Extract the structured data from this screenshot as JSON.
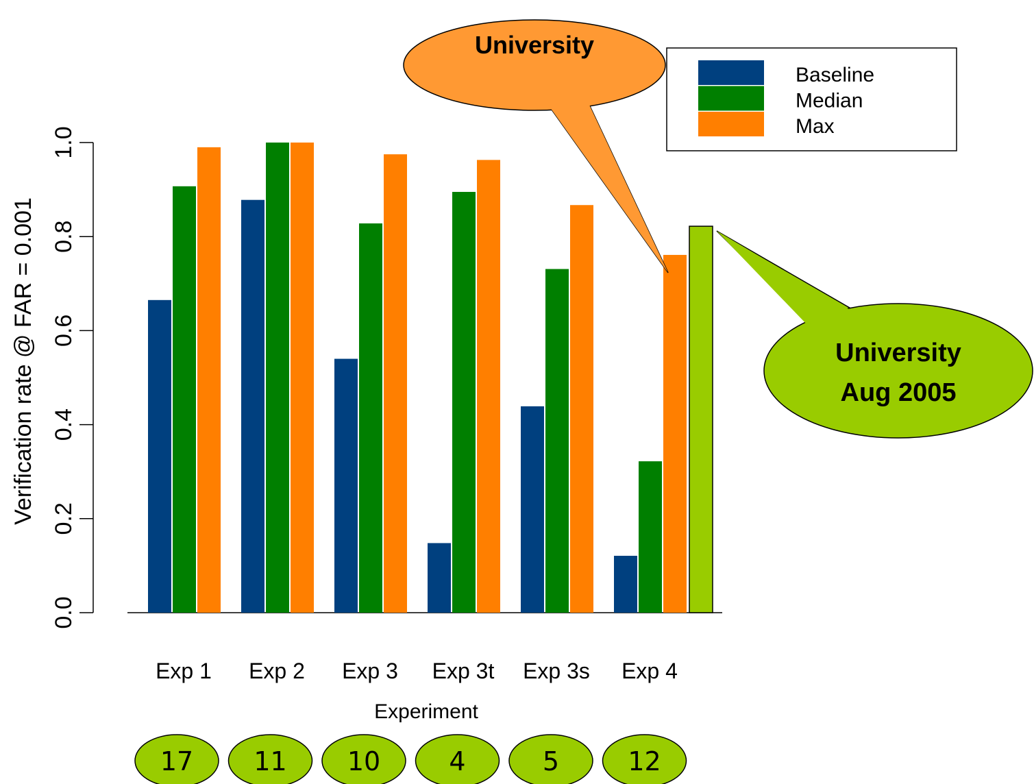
{
  "chart_data": {
    "type": "bar",
    "categories": [
      "Exp 1",
      "Exp 2",
      "Exp 3",
      "Exp 3t",
      "Exp 3s",
      "Exp 4"
    ],
    "series": [
      {
        "name": "Baseline",
        "color": "#00407f",
        "values": [
          0.665,
          0.878,
          0.54,
          0.148,
          0.439,
          0.121
        ]
      },
      {
        "name": "Median",
        "color": "#007f00",
        "values": [
          0.907,
          1.0,
          0.828,
          0.895,
          0.731,
          0.322
        ]
      },
      {
        "name": "Max",
        "color": "#ff7f00",
        "values": [
          0.99,
          1.0,
          0.975,
          0.963,
          0.867,
          0.761
        ]
      }
    ],
    "extra_bar": {
      "category": "Exp 4",
      "value": 0.822,
      "color": "#99cc00"
    },
    "xlabel": "Experiment",
    "ylabel": "Verification rate @ FAR = 0.001",
    "ylim": [
      0,
      1
    ],
    "yticks": [
      "0.0",
      "0.2",
      "0.4",
      "0.6",
      "0.8",
      "1.0"
    ],
    "legend_position": "top-right",
    "annotations": [
      {
        "id": "callout-orange",
        "lines": [
          "University"
        ],
        "color": "#ff9933",
        "points_to": "Exp 4 Max"
      },
      {
        "id": "callout-green",
        "lines": [
          "University",
          "Aug 2005"
        ],
        "color": "#99cc00",
        "points_to": "Exp 4 extra bar"
      }
    ],
    "counts": [
      "17",
      "11",
      "10",
      "4",
      "5",
      "12"
    ],
    "count_color": "#99cc00"
  }
}
